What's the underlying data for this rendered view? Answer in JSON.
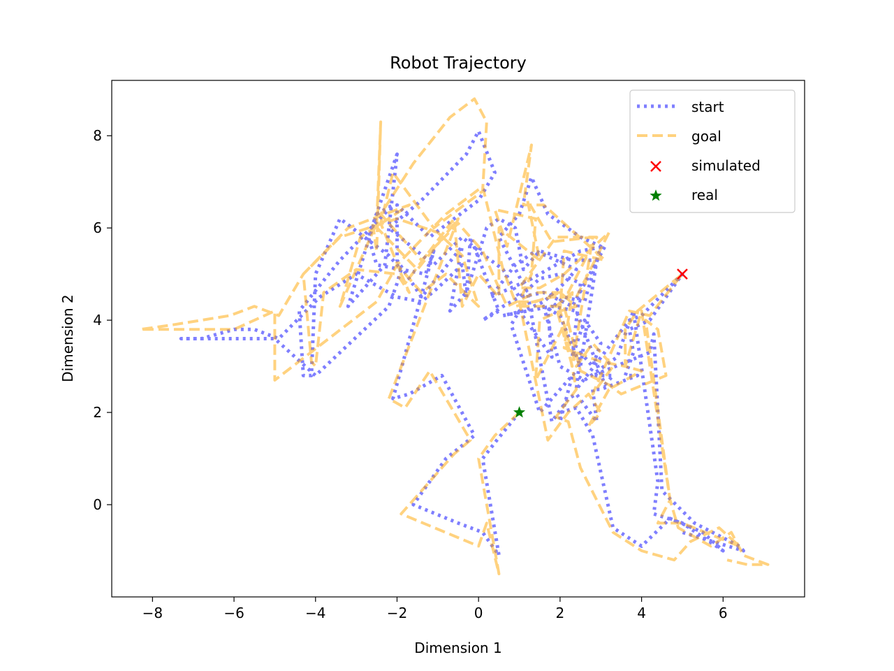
{
  "chart_data": {
    "type": "line",
    "title": "Robot Trajectory",
    "xlabel": "Dimension 1",
    "ylabel": "Dimension 2",
    "xlim": [
      -9.0,
      8.0
    ],
    "ylim": [
      -2.0,
      9.2
    ],
    "xticks": [
      -8,
      -6,
      -4,
      -2,
      0,
      2,
      4,
      6
    ],
    "yticks": [
      0,
      2,
      4,
      6,
      8
    ],
    "xtick_labels": [
      "−8",
      "−6",
      "−4",
      "−2",
      "0",
      "2",
      "4",
      "6"
    ],
    "ytick_labels": [
      "0",
      "2",
      "4",
      "6",
      "8"
    ],
    "grid": false,
    "legend_position": "top-right",
    "series": [
      {
        "name": "start",
        "style": "dotted",
        "color": "#0000ff",
        "opacity": 0.5,
        "points": [
          [
            1.0,
            2.0
          ],
          [
            0.45,
            1.4
          ],
          [
            0.1,
            1.0
          ],
          [
            0.5,
            -1.1
          ],
          [
            0.1,
            -0.6
          ],
          [
            -0.5,
            -0.4
          ],
          [
            -1.6,
            0.0
          ],
          [
            -0.8,
            1.0
          ],
          [
            -0.1,
            1.5
          ],
          [
            -0.9,
            2.8
          ],
          [
            -1.7,
            2.4
          ],
          [
            -2.1,
            2.3
          ],
          [
            -1.1,
            5.5
          ],
          [
            -1.3,
            5.0
          ],
          [
            -2.5,
            5.2
          ],
          [
            -2.7,
            5.8
          ],
          [
            -2.0,
            7.6
          ],
          [
            -2.3,
            5.2
          ],
          [
            -3.2,
            4.3
          ],
          [
            -2.5,
            6.3
          ],
          [
            -2.1,
            6.5
          ],
          [
            -3.4,
            5.3
          ],
          [
            -4.4,
            4.2
          ],
          [
            -4.3,
            2.8
          ],
          [
            -4.1,
            2.8
          ],
          [
            -4.0,
            5.0
          ],
          [
            -3.4,
            6.2
          ],
          [
            -2.2,
            5.4
          ],
          [
            -1.9,
            5.1
          ],
          [
            -2.0,
            4.8
          ],
          [
            -2.2,
            4.3
          ],
          [
            -4.0,
            2.8
          ],
          [
            -5.0,
            3.6
          ],
          [
            -7.3,
            3.6
          ],
          [
            -6.8,
            3.6
          ],
          [
            -6.0,
            3.8
          ],
          [
            -5.5,
            3.8
          ],
          [
            -4.9,
            3.6
          ],
          [
            -3.9,
            4.5
          ],
          [
            -3.0,
            5.0
          ],
          [
            -2.0,
            4.5
          ],
          [
            -1.4,
            4.4
          ],
          [
            -1.0,
            4.7
          ],
          [
            -0.4,
            5.2
          ],
          [
            -0.3,
            4.5
          ],
          [
            -0.2,
            5.8
          ],
          [
            0.5,
            4.2
          ],
          [
            0.1,
            4.0
          ],
          [
            0.6,
            4.3
          ],
          [
            1.0,
            4.5
          ],
          [
            1.5,
            4.9
          ],
          [
            2.0,
            5.0
          ],
          [
            2.5,
            4.8
          ],
          [
            2.3,
            3.2
          ],
          [
            2.6,
            4.0
          ],
          [
            3.0,
            3.5
          ],
          [
            2.8,
            3.0
          ],
          [
            2.5,
            3.3
          ],
          [
            2.4,
            2.5
          ],
          [
            3.7,
            4.0
          ],
          [
            4.0,
            4.1
          ],
          [
            5.0,
            5.0
          ],
          [
            4.2,
            4.0
          ],
          [
            3.7,
            3.8
          ],
          [
            3.8,
            3.3
          ],
          [
            3.6,
            2.8
          ],
          [
            3.9,
            2.8
          ],
          [
            3.0,
            2.5
          ],
          [
            2.8,
            2.5
          ],
          [
            2.9,
            1.8
          ],
          [
            2.4,
            2.4
          ],
          [
            2.2,
            2.3
          ],
          [
            1.8,
            1.8
          ],
          [
            1.3,
            4.1
          ],
          [
            1.2,
            4.6
          ],
          [
            0.5,
            5.8
          ],
          [
            1.0,
            6.3
          ],
          [
            1.3,
            7.1
          ],
          [
            1.7,
            6.3
          ],
          [
            2.5,
            5.8
          ],
          [
            3.0,
            5.6
          ],
          [
            2.6,
            4.4
          ],
          [
            2.1,
            4.5
          ],
          [
            1.7,
            4.2
          ],
          [
            1.8,
            3.2
          ],
          [
            1.0,
            4.2
          ],
          [
            0.8,
            3.9
          ],
          [
            1.5,
            2.0
          ],
          [
            2.3,
            2.8
          ],
          [
            2.0,
            1.8
          ],
          [
            2.0,
            2.0
          ],
          [
            2.4,
            2.1
          ],
          [
            2.8,
            1.5
          ],
          [
            3.3,
            -0.5
          ],
          [
            4.0,
            -0.9
          ],
          [
            4.7,
            -0.3
          ],
          [
            5.5,
            -0.6
          ],
          [
            6.0,
            -1.0
          ],
          [
            5.0,
            -0.4
          ],
          [
            4.3,
            -0.2
          ],
          [
            4.4,
            0.5
          ],
          [
            3.8,
            4.2
          ],
          [
            3.4,
            3.2
          ],
          [
            2.6,
            2.7
          ],
          [
            2.0,
            3.0
          ],
          [
            1.6,
            4.3
          ],
          [
            2.0,
            4.1
          ],
          [
            2.5,
            3.0
          ],
          [
            2.9,
            5.3
          ],
          [
            2.3,
            5.3
          ],
          [
            1.5,
            5.5
          ],
          [
            1.1,
            5.1
          ],
          [
            0.9,
            6.0
          ],
          [
            0.5,
            6.2
          ],
          [
            0.2,
            6.0
          ],
          [
            -0.3,
            4.6
          ],
          [
            -0.7,
            4.2
          ],
          [
            -0.4,
            5.6
          ],
          [
            -1.4,
            4.5
          ],
          [
            -2.0,
            5.3
          ],
          [
            -2.0,
            6.5
          ],
          [
            -1.2,
            5.8
          ],
          [
            0.0,
            6.6
          ],
          [
            0.4,
            7.2
          ],
          [
            0.0,
            8.1
          ],
          [
            -0.3,
            7.6
          ],
          [
            -1.4,
            6.6
          ],
          [
            -2.2,
            6.0
          ],
          [
            -1.1,
            5.2
          ],
          [
            -0.4,
            5.8
          ],
          [
            0.0,
            5.5
          ],
          [
            0.6,
            5.1
          ],
          [
            1.0,
            4.5
          ],
          [
            1.6,
            4.6
          ],
          [
            2.3,
            4.3
          ],
          [
            3.1,
            5.6
          ],
          [
            2.5,
            5.5
          ],
          [
            1.3,
            4.9
          ],
          [
            0.3,
            4.5
          ],
          [
            0.9,
            5.2
          ],
          [
            1.4,
            5.5
          ],
          [
            2.4,
            5.1
          ],
          [
            2.1,
            4.8
          ],
          [
            1.6,
            4.4
          ],
          [
            1.1,
            4.2
          ],
          [
            0.6,
            4.1
          ],
          [
            1.8,
            4.3
          ],
          [
            2.4,
            4.2
          ],
          [
            3.1,
            2.6
          ],
          [
            3.3,
            2.8
          ],
          [
            2.8,
            2.8
          ],
          [
            4.2,
            3.3
          ],
          [
            4.3,
            3.7
          ],
          [
            4.5,
            0.3
          ],
          [
            5.3,
            -0.4
          ],
          [
            6.4,
            -0.9
          ],
          [
            6.5,
            -1.0
          ],
          [
            5.0,
            -0.6
          ]
        ]
      },
      {
        "name": "goal",
        "style": "dashed",
        "color": "#ffa500",
        "opacity": 0.5,
        "points": [
          [
            1.0,
            2.0
          ],
          [
            0.4,
            1.5
          ],
          [
            0.0,
            1.0
          ],
          [
            0.5,
            -1.5
          ],
          [
            0.2,
            -0.4
          ],
          [
            0.0,
            -0.9
          ],
          [
            -1.9,
            -0.2
          ],
          [
            -0.6,
            1.1
          ],
          [
            -0.2,
            1.4
          ],
          [
            -1.2,
            2.9
          ],
          [
            -1.8,
            2.1
          ],
          [
            -2.2,
            2.3
          ],
          [
            -0.5,
            6.2
          ],
          [
            -1.5,
            5.1
          ],
          [
            -2.6,
            6.1
          ],
          [
            -2.5,
            5.5
          ],
          [
            -2.4,
            8.3
          ],
          [
            -2.5,
            6.1
          ],
          [
            -3.4,
            4.3
          ],
          [
            -2.9,
            5.8
          ],
          [
            -1.7,
            6.5
          ],
          [
            -3.2,
            6.0
          ],
          [
            -4.3,
            5.0
          ],
          [
            -4.1,
            3.1
          ],
          [
            -4.0,
            3.0
          ],
          [
            -3.8,
            4.6
          ],
          [
            -3.0,
            5.1
          ],
          [
            -2.0,
            5.0
          ],
          [
            -1.7,
            4.6
          ],
          [
            -2.0,
            5.2
          ],
          [
            -2.5,
            4.4
          ],
          [
            -5.0,
            2.7
          ],
          [
            -5.0,
            4.2
          ],
          [
            -6.0,
            3.8
          ],
          [
            -8.3,
            3.8
          ],
          [
            -7.5,
            3.9
          ],
          [
            -6.1,
            4.1
          ],
          [
            -5.5,
            4.3
          ],
          [
            -4.9,
            4.1
          ],
          [
            -4.3,
            5.0
          ],
          [
            -3.4,
            5.8
          ],
          [
            -2.0,
            6.2
          ],
          [
            -1.0,
            5.9
          ],
          [
            -0.4,
            5.4
          ],
          [
            0.0,
            4.3
          ],
          [
            -0.8,
            5.0
          ],
          [
            -1.4,
            4.6
          ],
          [
            -2.0,
            5.2
          ],
          [
            -0.8,
            6.3
          ],
          [
            0.1,
            6.9
          ],
          [
            0.6,
            5.1
          ],
          [
            0.9,
            4.4
          ],
          [
            1.4,
            4.4
          ],
          [
            2.0,
            4.6
          ],
          [
            2.4,
            4.3
          ],
          [
            2.0,
            4.2
          ],
          [
            2.4,
            3.0
          ],
          [
            2.8,
            3.5
          ],
          [
            3.3,
            3.0
          ],
          [
            2.8,
            2.4
          ],
          [
            3.7,
            4.2
          ],
          [
            4.2,
            4.1
          ],
          [
            5.0,
            5.0
          ],
          [
            3.9,
            4.2
          ],
          [
            3.6,
            3.8
          ],
          [
            3.6,
            3.0
          ],
          [
            4.0,
            2.9
          ],
          [
            3.2,
            2.5
          ],
          [
            2.7,
            1.7
          ],
          [
            3.0,
            2.0
          ],
          [
            2.7,
            2.4
          ],
          [
            2.2,
            2.0
          ],
          [
            1.7,
            1.4
          ],
          [
            1.0,
            4.4
          ],
          [
            1.3,
            5.0
          ],
          [
            1.4,
            6.2
          ],
          [
            0.4,
            6.4
          ],
          [
            0.7,
            5.6
          ],
          [
            1.3,
            7.8
          ],
          [
            1.1,
            6.5
          ],
          [
            1.6,
            6.5
          ],
          [
            2.6,
            5.7
          ],
          [
            3.1,
            5.3
          ],
          [
            2.1,
            5.5
          ],
          [
            2.0,
            4.2
          ],
          [
            1.5,
            4.0
          ],
          [
            1.4,
            2.7
          ],
          [
            2.1,
            3.9
          ],
          [
            2.4,
            2.5
          ],
          [
            1.9,
            1.9
          ],
          [
            2.2,
            1.8
          ],
          [
            2.5,
            0.8
          ],
          [
            3.3,
            -0.6
          ],
          [
            4.0,
            -1.0
          ],
          [
            4.8,
            -1.2
          ],
          [
            5.2,
            -0.8
          ],
          [
            5.9,
            -0.5
          ],
          [
            6.4,
            -0.9
          ],
          [
            5.0,
            -0.4
          ],
          [
            4.4,
            -0.4
          ],
          [
            4.7,
            0.1
          ],
          [
            4.0,
            4.2
          ],
          [
            3.6,
            3.0
          ],
          [
            3.0,
            3.1
          ],
          [
            2.1,
            3.4
          ],
          [
            2.3,
            4.6
          ],
          [
            1.9,
            4.3
          ],
          [
            2.3,
            3.0
          ],
          [
            2.8,
            5.8
          ],
          [
            1.8,
            5.7
          ],
          [
            1.2,
            6.6
          ],
          [
            1.5,
            5.3
          ],
          [
            0.5,
            6.0
          ],
          [
            0.5,
            4.5
          ],
          [
            0.0,
            5.0
          ],
          [
            -0.4,
            4.3
          ],
          [
            -0.6,
            6.2
          ],
          [
            -1.8,
            4.8
          ],
          [
            -2.4,
            6.1
          ],
          [
            -2.1,
            7.2
          ],
          [
            -1.1,
            6.0
          ],
          [
            0.1,
            6.8
          ],
          [
            0.2,
            8.3
          ],
          [
            -0.1,
            8.8
          ],
          [
            -0.7,
            8.4
          ],
          [
            -1.6,
            7.4
          ],
          [
            -2.4,
            6.3
          ],
          [
            -1.4,
            5.3
          ],
          [
            -0.5,
            6.1
          ],
          [
            0.1,
            5.5
          ],
          [
            0.7,
            4.3
          ],
          [
            1.4,
            4.6
          ],
          [
            2.2,
            4.6
          ],
          [
            2.9,
            5.8
          ],
          [
            1.9,
            5.8
          ],
          [
            1.0,
            4.7
          ],
          [
            1.5,
            4.7
          ],
          [
            2.1,
            5.0
          ],
          [
            3.2,
            5.9
          ],
          [
            2.4,
            4.5
          ],
          [
            1.8,
            4.5
          ],
          [
            0.9,
            4.3
          ],
          [
            2.1,
            4.3
          ],
          [
            2.5,
            2.9
          ],
          [
            3.2,
            2.6
          ],
          [
            3.5,
            2.4
          ],
          [
            4.6,
            2.8
          ],
          [
            4.4,
            3.8
          ],
          [
            4.1,
            4.0
          ],
          [
            4.7,
            0.1
          ],
          [
            4.9,
            -0.5
          ],
          [
            5.7,
            -0.9
          ],
          [
            6.2,
            -0.6
          ],
          [
            6.5,
            -1.1
          ],
          [
            7.1,
            -1.3
          ],
          [
            6.6,
            -1.3
          ],
          [
            6.1,
            -1.2
          ]
        ]
      }
    ],
    "markers": [
      {
        "name": "simulated",
        "shape": "x",
        "color": "#ff0000",
        "x": 5.0,
        "y": 5.0
      },
      {
        "name": "real",
        "shape": "star",
        "color": "#008000",
        "x": 1.0,
        "y": 2.0
      }
    ]
  }
}
